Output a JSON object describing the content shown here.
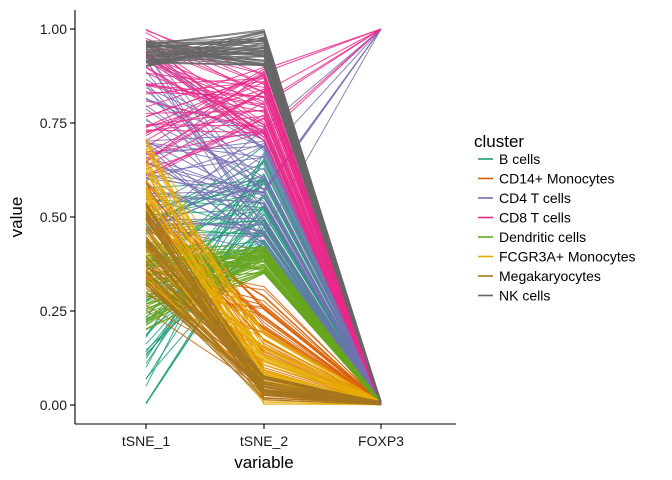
{
  "chart_data": {
    "type": "line",
    "subtype": "parallel-coordinates",
    "title": "",
    "xlabel": "variable",
    "ylabel": "value",
    "categories": [
      "tSNE_1",
      "tSNE_2",
      "FOXP3"
    ],
    "ylim": [
      0,
      1
    ],
    "yticks": [
      0.0,
      0.25,
      0.5,
      0.75,
      1.0
    ],
    "ytick_labels": [
      "0.00",
      "0.25",
      "0.50",
      "0.75",
      "1.00"
    ],
    "grid": false,
    "legend": {
      "title": "cluster",
      "placement": "right",
      "entries": [
        "B cells",
        "CD14+ Monocytes",
        "CD4 T cells",
        "CD8 T cells",
        "Dendritic cells",
        "FCGR3A+ Monocytes",
        "Megakaryocytes",
        "NK cells"
      ]
    },
    "series": [
      {
        "name": "B cells",
        "color": "#1B9E77",
        "tsne1_range": [
          0.0,
          0.58
        ],
        "tsne2_range": [
          0.4,
          0.69
        ],
        "foxp3_range": [
          0.0,
          0.01
        ]
      },
      {
        "name": "CD14+ Monocytes",
        "color": "#D95F02",
        "tsne1_range": [
          0.25,
          0.6
        ],
        "tsne2_range": [
          0.01,
          0.32
        ],
        "foxp3_range": [
          0.0,
          0.01
        ]
      },
      {
        "name": "CD4 T cells",
        "color": "#7570B3",
        "tsne1_range": [
          0.45,
          0.97
        ],
        "tsne2_range": [
          0.4,
          0.75
        ],
        "foxp3_range": [
          0.0,
          1.0
        ]
      },
      {
        "name": "CD8 T cells",
        "color": "#E7298A",
        "tsne1_range": [
          0.6,
          1.0
        ],
        "tsne2_range": [
          0.7,
          0.9
        ],
        "foxp3_range": [
          0.0,
          1.0
        ]
      },
      {
        "name": "Dendritic cells",
        "color": "#66A61E",
        "tsne1_range": [
          0.2,
          0.45
        ],
        "tsne2_range": [
          0.35,
          0.43
        ],
        "foxp3_range": [
          0.0,
          0.01
        ]
      },
      {
        "name": "FCGR3A+ Monocytes",
        "color": "#E6AB02",
        "tsne1_range": [
          0.3,
          0.72
        ],
        "tsne2_range": [
          0.0,
          0.2
        ],
        "foxp3_range": [
          0.0,
          0.01
        ]
      },
      {
        "name": "Megakaryocytes",
        "color": "#A6761D",
        "tsne1_range": [
          0.3,
          0.55
        ],
        "tsne2_range": [
          0.01,
          0.08
        ],
        "foxp3_range": [
          0.0,
          0.01
        ]
      },
      {
        "name": "NK cells",
        "color": "#666666",
        "tsne1_range": [
          0.9,
          0.97
        ],
        "tsne2_range": [
          0.9,
          1.0
        ],
        "foxp3_range": [
          0.0,
          0.01
        ]
      }
    ]
  }
}
